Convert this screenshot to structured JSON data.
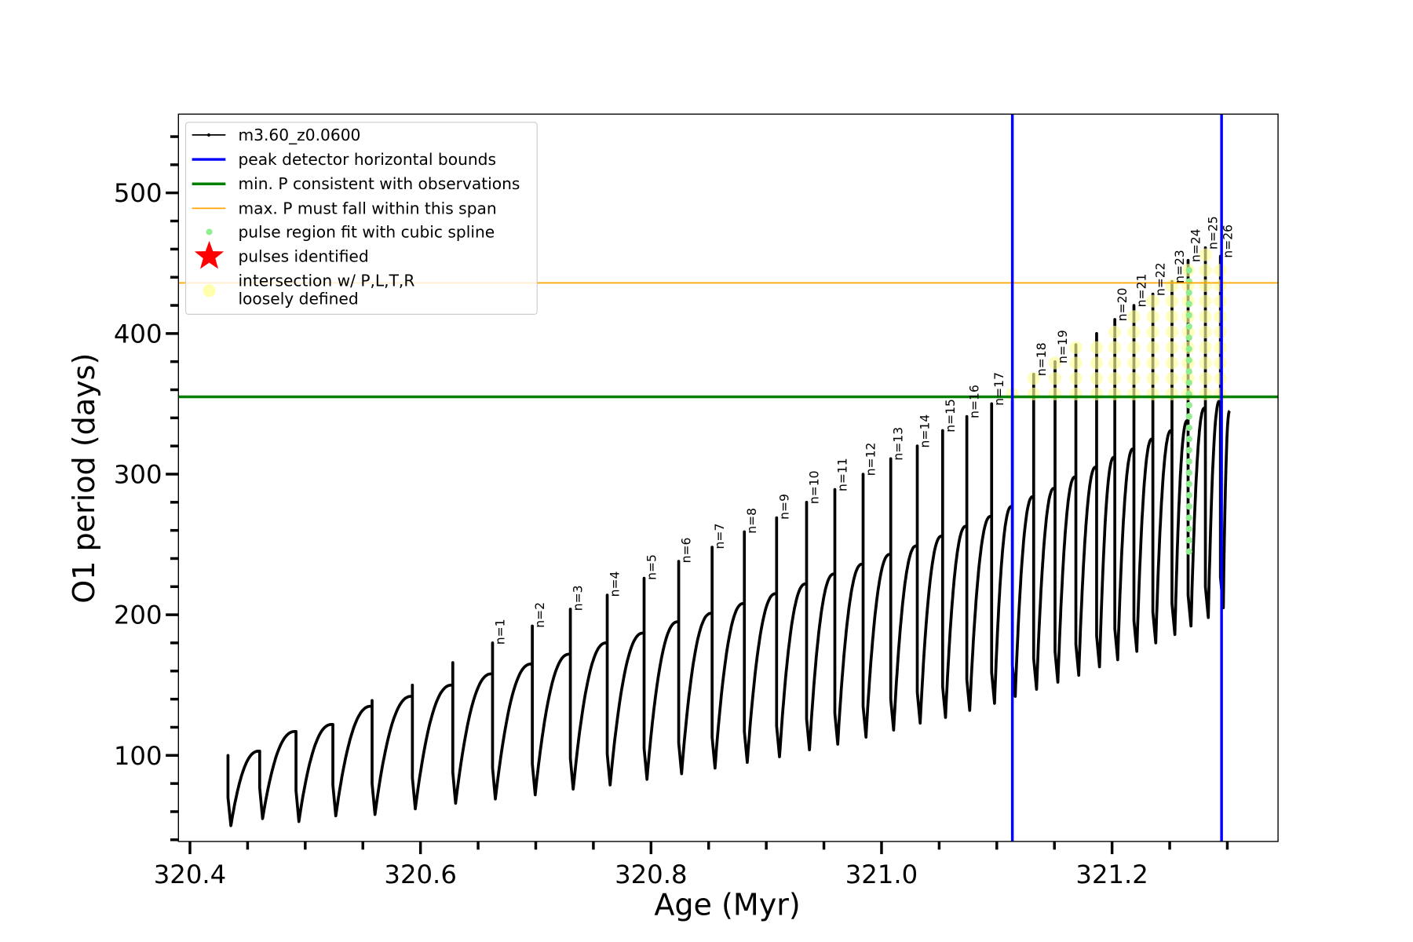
{
  "chart_data": {
    "type": "line",
    "xlabel": "Age (Myr)",
    "ylabel": "O1 period (days)",
    "xlim": [
      320.39,
      321.344
    ],
    "ylim": [
      38.8,
      556
    ],
    "xticks": [
      {
        "value": 320.4,
        "label": "320.4"
      },
      {
        "value": 320.6,
        "label": "320.6"
      },
      {
        "value": 320.8,
        "label": "320.8"
      },
      {
        "value": 321.0,
        "label": "321.0"
      },
      {
        "value": 321.2,
        "label": "321.2"
      }
    ],
    "x_minor_step": 0.05,
    "yticks": [
      {
        "value": 100,
        "label": "100"
      },
      {
        "value": 200,
        "label": "200"
      },
      {
        "value": 300,
        "label": "300"
      },
      {
        "value": 400,
        "label": "400"
      },
      {
        "value": 500,
        "label": "500"
      }
    ],
    "y_minor_step": 20,
    "grid": false,
    "legend_placement": "top-left",
    "series": [
      {
        "name": "m3.60_z0.0600",
        "color": "#000000",
        "start": {
          "age": 320.433,
          "value": 95,
          "spike": 100,
          "min": 50
        },
        "end": {
          "age": 321.302,
          "value": 345
        },
        "pulses": [
          {
            "age": 320.4605,
            "peak": 103,
            "spike": 103,
            "min": 55,
            "label": ""
          },
          {
            "age": 320.492,
            "peak": 117,
            "spike": 117,
            "min": 53,
            "label": ""
          },
          {
            "age": 320.524,
            "peak": 122,
            "spike": 122,
            "min": 57,
            "label": ""
          },
          {
            "age": 320.558,
            "peak": 135,
            "spike": 139,
            "min": 58,
            "label": ""
          },
          {
            "age": 320.593,
            "peak": 142,
            "spike": 150,
            "min": 62,
            "label": ""
          },
          {
            "age": 320.628,
            "peak": 150,
            "spike": 166,
            "min": 66,
            "label": ""
          },
          {
            "age": 320.6625,
            "peak": 158,
            "spike": 180,
            "min": 69,
            "label": "n=1"
          },
          {
            "age": 320.697,
            "peak": 165,
            "spike": 192,
            "min": 72,
            "label": "n=2"
          },
          {
            "age": 320.73,
            "peak": 172,
            "spike": 204,
            "min": 76,
            "label": "n=3"
          },
          {
            "age": 320.762,
            "peak": 180,
            "spike": 214,
            "min": 79,
            "label": "n=4"
          },
          {
            "age": 320.794,
            "peak": 187,
            "spike": 226,
            "min": 83,
            "label": "n=5"
          },
          {
            "age": 320.824,
            "peak": 195,
            "spike": 238,
            "min": 87,
            "label": "n=6"
          },
          {
            "age": 320.853,
            "peak": 201,
            "spike": 248,
            "min": 91,
            "label": "n=7"
          },
          {
            "age": 320.881,
            "peak": 208,
            "spike": 259,
            "min": 95,
            "label": "n=8"
          },
          {
            "age": 320.909,
            "peak": 215,
            "spike": 269,
            "min": 99,
            "label": "n=9"
          },
          {
            "age": 320.935,
            "peak": 222,
            "spike": 280,
            "min": 104,
            "label": "n=10"
          },
          {
            "age": 320.9595,
            "peak": 229,
            "spike": 289,
            "min": 108,
            "label": "n=11"
          },
          {
            "age": 320.984,
            "peak": 236,
            "spike": 300,
            "min": 113,
            "label": "n=12"
          },
          {
            "age": 321.008,
            "peak": 243,
            "spike": 311,
            "min": 118,
            "label": "n=13"
          },
          {
            "age": 321.031,
            "peak": 249,
            "spike": 320,
            "min": 123,
            "label": "n=14"
          },
          {
            "age": 321.053,
            "peak": 256,
            "spike": 331,
            "min": 127,
            "label": "n=15"
          },
          {
            "age": 321.074,
            "peak": 263,
            "spike": 341,
            "min": 132,
            "label": "n=16"
          },
          {
            "age": 321.0955,
            "peak": 270,
            "spike": 350,
            "min": 137,
            "label": "n=17"
          },
          {
            "age": 321.1135,
            "peak": 277,
            "spike": 360,
            "min": 142,
            "label": ""
          },
          {
            "age": 321.132,
            "peak": 284,
            "spike": 371,
            "min": 147,
            "label": "n=18"
          },
          {
            "age": 321.1505,
            "peak": 290,
            "spike": 380,
            "min": 152,
            "label": "n=19"
          },
          {
            "age": 321.1686,
            "peak": 298,
            "spike": 392,
            "min": 157,
            "label": ""
          },
          {
            "age": 321.1866,
            "peak": 305,
            "spike": 400,
            "min": 163,
            "label": ""
          },
          {
            "age": 321.2024,
            "peak": 312,
            "spike": 410,
            "min": 168,
            "label": "n=20"
          },
          {
            "age": 321.219,
            "peak": 318,
            "spike": 420,
            "min": 174,
            "label": "n=21"
          },
          {
            "age": 321.2354,
            "peak": 325,
            "spike": 428,
            "min": 180,
            "label": "n=22"
          },
          {
            "age": 321.252,
            "peak": 331,
            "spike": 437,
            "min": 186,
            "label": "n=23"
          },
          {
            "age": 321.266,
            "peak": 338,
            "spike": 452,
            "min": 192,
            "label": "n=24"
          },
          {
            "age": 321.281,
            "peak": 347,
            "spike": 461,
            "min": 198,
            "label": "n=25"
          },
          {
            "age": 321.294,
            "peak": 352,
            "spike": 455,
            "min": 205,
            "label": "n=26"
          }
        ]
      }
    ],
    "vlines": [
      {
        "age": 321.1135,
        "color": "#0000ff",
        "legend": "peak detector horizontal bounds"
      },
      {
        "age": 321.295,
        "color": "#0000ff"
      }
    ],
    "hlines": [
      {
        "value": 355,
        "color": "#008000",
        "legend": "min. P consistent with observations"
      },
      {
        "value": 436,
        "color": "#ffa500",
        "legend": "max. P must fall within this span"
      }
    ],
    "spline_fit": {
      "pulse_label": "n=24",
      "range": [
        245,
        452
      ],
      "color": "#90ee90",
      "legend": "pulse region fit with cubic spline"
    },
    "pulses_identified": {
      "color": "#ff0000",
      "legend": "pulses identified"
    },
    "loosely_defined": {
      "from_age": 321.1135,
      "min_value": 355,
      "color": "#ffff99",
      "legend": "intersection w/ P,L,T,R\nloosely defined"
    },
    "legend": [
      {
        "label": "m3.60_z0.0600",
        "marker": "line-dot",
        "color": "#000000"
      },
      {
        "label": "peak detector horizontal bounds",
        "marker": "line",
        "color": "#0000ff"
      },
      {
        "label": "min. P consistent with observations",
        "marker": "line",
        "color": "#008000"
      },
      {
        "label": "max. P must fall within this span",
        "marker": "thin-line",
        "color": "#ffa500"
      },
      {
        "label": "pulse region fit with cubic spline",
        "marker": "dot",
        "color": "#90ee90"
      },
      {
        "label": "pulses identified",
        "marker": "star",
        "color": "#ff0000"
      },
      {
        "label": "intersection w/ P,L,T,R",
        "label2": "loosely defined",
        "marker": "circle",
        "color": "#ffff99"
      }
    ]
  }
}
